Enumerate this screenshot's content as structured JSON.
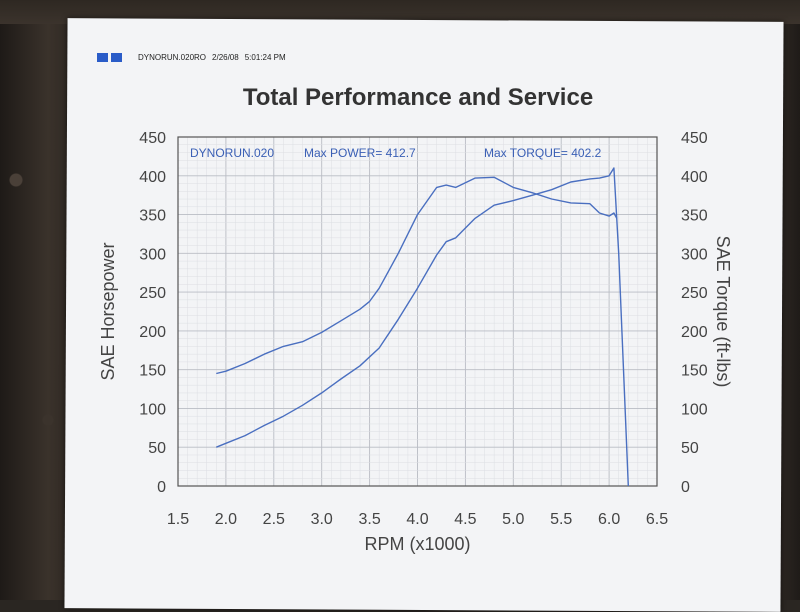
{
  "header": {
    "run_id": "DYNORUN.020RO",
    "date": "2/26/08",
    "time": "5:01:24 PM"
  },
  "chart_data": {
    "type": "line",
    "title": "Total Performance and Service",
    "xlabel": "RPM (x1000)",
    "ylabel": "SAE Horsepower",
    "y2label": "SAE Torque (ft-lbs)",
    "xlim": [
      1.5,
      6.5
    ],
    "ylim": [
      0,
      450
    ],
    "y2lim": [
      0,
      450
    ],
    "x_ticks": [
      "1.5",
      "2.0",
      "2.5",
      "3.0",
      "3.5",
      "4.0",
      "4.5",
      "5.0",
      "5.5",
      "6.0",
      "6.5"
    ],
    "y_ticks": [
      "0",
      "50",
      "100",
      "150",
      "200",
      "250",
      "300",
      "350",
      "400",
      "450"
    ],
    "y2_ticks": [
      "0",
      "50",
      "100",
      "150",
      "200",
      "250",
      "300",
      "350",
      "400",
      "450"
    ],
    "grid": true,
    "annotations": {
      "run": "DYNORUN.020",
      "max_power": "Max POWER= 412.7",
      "max_torque": "Max TORQUE= 402.2"
    },
    "series": [
      {
        "x": [
          1.9,
          2.0,
          2.2,
          2.4,
          2.6,
          2.8,
          3.0,
          3.2,
          3.4,
          3.6,
          3.8,
          4.0,
          4.2,
          4.3,
          4.4,
          4.6,
          4.8,
          5.0,
          5.2,
          5.4,
          5.6,
          5.8,
          5.9,
          6.0,
          6.05,
          6.1,
          6.2
        ],
        "y": [
          50,
          55,
          65,
          78,
          90,
          104,
          120,
          138,
          155,
          178,
          215,
          255,
          298,
          315,
          320,
          345,
          362,
          368,
          375,
          382,
          392,
          396,
          397,
          400,
          410,
          300,
          0
        ]
      },
      {
        "x": [
          1.9,
          2.0,
          2.2,
          2.4,
          2.6,
          2.8,
          3.0,
          3.2,
          3.4,
          3.5,
          3.6,
          3.8,
          4.0,
          4.2,
          4.3,
          4.4,
          4.6,
          4.8,
          5.0,
          5.2,
          5.4,
          5.6,
          5.8,
          5.9,
          6.0,
          6.05,
          6.08
        ],
        "y": [
          145,
          148,
          158,
          170,
          180,
          186,
          198,
          213,
          228,
          238,
          255,
          300,
          350,
          385,
          388,
          385,
          397,
          398,
          385,
          378,
          370,
          365,
          364,
          352,
          348,
          352,
          345
        ]
      }
    ]
  }
}
